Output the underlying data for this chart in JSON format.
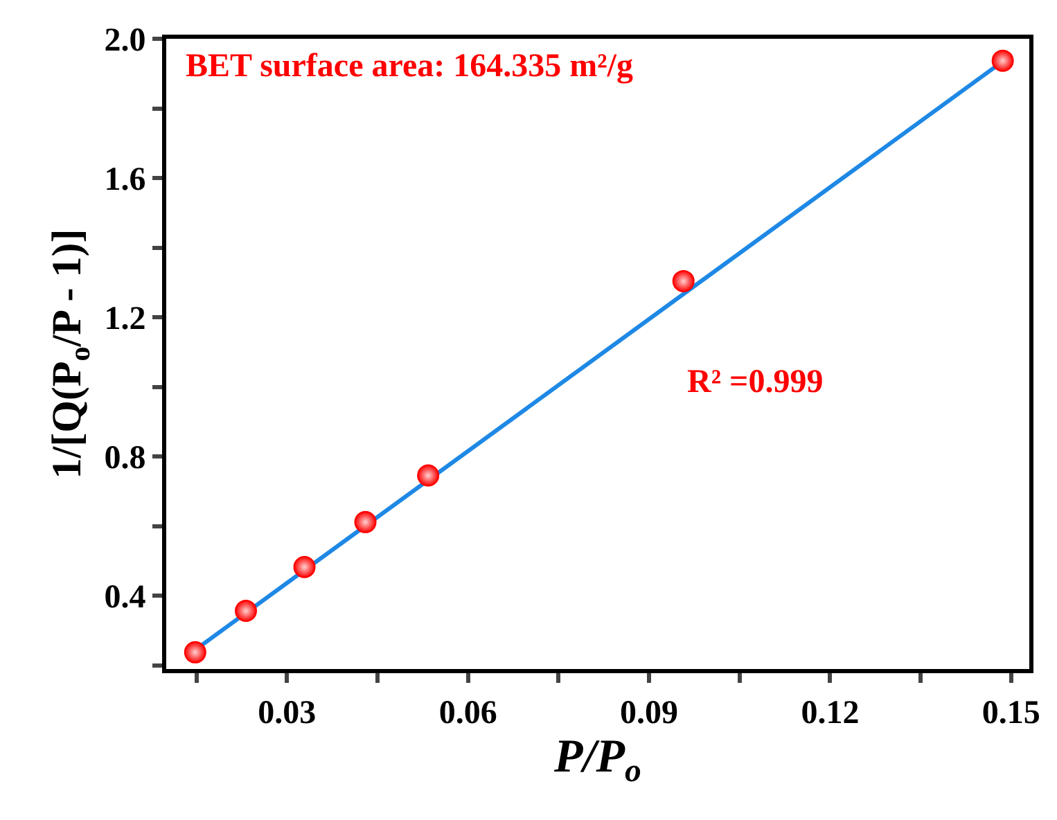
{
  "chart_data": {
    "type": "scatter",
    "xlabel": "P/P$_{o}$",
    "ylabel": "1/[Q(P$_{o}$/P - 1)]",
    "annotations": [
      "BET surface area: 164.335 m²/g",
      "R² =0.999"
    ],
    "xlim": [
      0.01,
      0.153
    ],
    "ylim": [
      0.19,
      2.0
    ],
    "xticks": [
      {
        "value": 0.015,
        "label": null
      },
      0.03,
      {
        "value": 0.045,
        "label": null
      },
      0.06,
      {
        "value": 0.075,
        "label": null
      },
      0.09,
      {
        "value": 0.105,
        "label": null
      },
      0.12,
      {
        "value": 0.135,
        "label": null
      },
      0.15
    ],
    "yticks": [
      {
        "value": 0.2,
        "label": null
      },
      0.4,
      {
        "value": 0.6,
        "label": null
      },
      0.8,
      {
        "value": 1.0,
        "label": null
      },
      1.2,
      {
        "value": 1.4,
        "label": null
      },
      1.6,
      {
        "value": 1.8,
        "label": null
      },
      {
        "value": 2.0,
        "label": "2.0"
      }
    ],
    "series": [
      {
        "type": "line",
        "color": "#1e88e5",
        "marker": "none",
        "line_style": "solid",
        "x": [
          0.0148,
          0.1486
        ],
        "values": [
          0.245,
          1.935
        ]
      },
      {
        "type": "scatter",
        "color": "#ff0000",
        "marker": "circle",
        "x": [
          0.0148,
          0.0232,
          0.0329,
          0.043,
          0.0534,
          0.0957,
          0.1486
        ],
        "values": [
          0.238,
          0.357,
          0.483,
          0.612,
          0.746,
          1.304,
          1.937
        ]
      }
    ]
  }
}
